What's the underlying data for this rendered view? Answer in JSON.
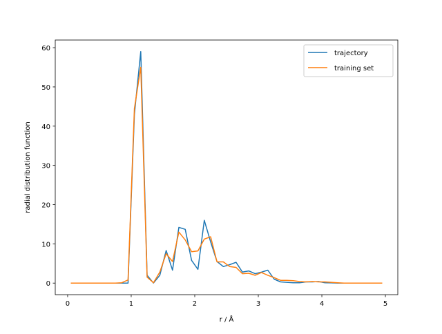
{
  "chart_data": {
    "type": "line",
    "title": "",
    "xlabel": "r / Å",
    "ylabel": "radial distribution function",
    "xlim": [
      -0.195,
      5.195
    ],
    "ylim": [
      -2.95,
      61.95
    ],
    "xticks": [
      0,
      1,
      2,
      3,
      4,
      5
    ],
    "yticks": [
      0,
      10,
      20,
      30,
      40,
      50,
      60
    ],
    "xtick_labels": [
      "0",
      "1",
      "2",
      "3",
      "4",
      "5"
    ],
    "ytick_labels": [
      "0",
      "10",
      "20",
      "30",
      "40",
      "50",
      "60"
    ],
    "grid": false,
    "legend_position": "top-right",
    "x": [
      0.05,
      0.15,
      0.25,
      0.35,
      0.45,
      0.55,
      0.65,
      0.75,
      0.85,
      0.95,
      1.05,
      1.15,
      1.25,
      1.35,
      1.45,
      1.55,
      1.65,
      1.75,
      1.85,
      1.95,
      2.05,
      2.15,
      2.25,
      2.35,
      2.45,
      2.55,
      2.65,
      2.75,
      2.85,
      2.95,
      3.05,
      3.15,
      3.25,
      3.35,
      3.45,
      3.55,
      3.65,
      3.75,
      3.85,
      3.95,
      4.05,
      4.15,
      4.25,
      4.35,
      4.45,
      4.55,
      4.65,
      4.75,
      4.85,
      4.95
    ],
    "series": [
      {
        "name": "trajectory",
        "color": "#1f77b4",
        "values": [
          0,
          0,
          0,
          0,
          0,
          0,
          0,
          0,
          0,
          0,
          43,
          59,
          2,
          0,
          2,
          8.3,
          3.3,
          14.2,
          13.7,
          5.8,
          3.5,
          16,
          10.5,
          5.5,
          4.2,
          4.7,
          5.3,
          2.8,
          3.1,
          2.4,
          2.8,
          3.3,
          1.0,
          0.3,
          0.2,
          0.1,
          0.1,
          0.3,
          0.3,
          0.4,
          0.1,
          0.05,
          0,
          0,
          0,
          0,
          0,
          0,
          0,
          0
        ]
      },
      {
        "name": "training set",
        "color": "#ff7f0e",
        "values": [
          0,
          0,
          0,
          0,
          0,
          0,
          0,
          0,
          0.1,
          0.8,
          44.5,
          55,
          1.5,
          0.1,
          2.8,
          7.5,
          5.5,
          13,
          11,
          8,
          8.2,
          11.2,
          11.8,
          5.4,
          5.4,
          4.2,
          4.0,
          2.4,
          2.5,
          2.0,
          2.7,
          2.0,
          1.4,
          0.7,
          0.7,
          0.6,
          0.4,
          0.3,
          0.4,
          0.3,
          0.3,
          0.2,
          0.1,
          0,
          0,
          0,
          0,
          0,
          0,
          0
        ]
      }
    ]
  }
}
